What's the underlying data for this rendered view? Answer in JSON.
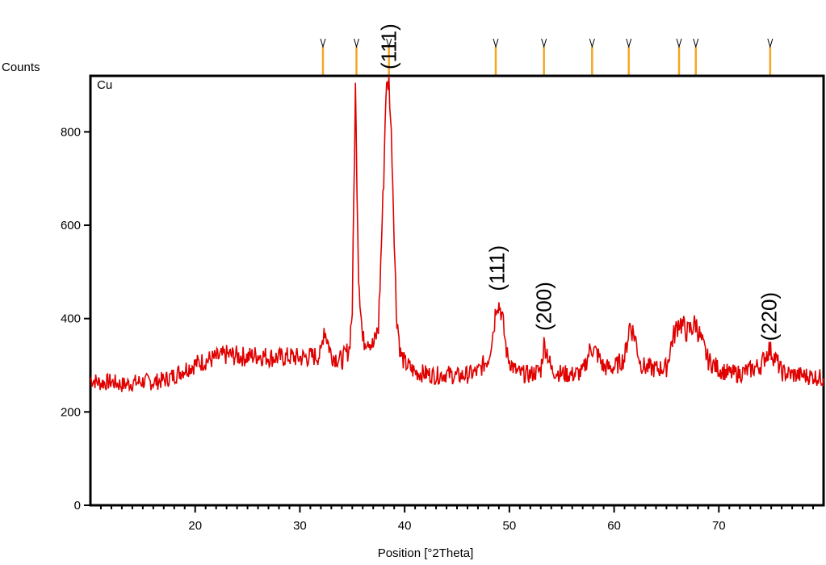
{
  "chart_data": {
    "type": "line",
    "title": "",
    "xlabel": "Position [°2Theta]",
    "ylabel": "Counts",
    "xlim": [
      10,
      80
    ],
    "ylim": [
      0,
      920
    ],
    "x_ticks": [
      20,
      30,
      40,
      50,
      60,
      70
    ],
    "y_ticks": [
      0,
      200,
      400,
      600,
      800
    ],
    "grid": false,
    "legend": "none",
    "series_color": "#e00000",
    "marker_color": "#f5a623",
    "series": [
      {
        "name": "Cu",
        "x": [
          10,
          11,
          12,
          13,
          14,
          15,
          16,
          17,
          18,
          19,
          20,
          21,
          22,
          23,
          24,
          25,
          26,
          27,
          28,
          29,
          30,
          31,
          32,
          32.3,
          33,
          34,
          34.7,
          35.0,
          35.3,
          35.6,
          36.0,
          36.5,
          37.0,
          37.5,
          38.0,
          38.2,
          38.5,
          38.8,
          39.2,
          39.6,
          40.0,
          41,
          42,
          43,
          44,
          45,
          46,
          47,
          48,
          48.5,
          48.8,
          49.2,
          49.8,
          50.5,
          51,
          52,
          53,
          53.3,
          53.6,
          54,
          55,
          56,
          57,
          57.8,
          58.5,
          59,
          60,
          61,
          61.5,
          62,
          62.5,
          63,
          64,
          65,
          65.5,
          66.2,
          67,
          67.8,
          68.5,
          69,
          70,
          71,
          72,
          73,
          74,
          74.8,
          75.5,
          76,
          77,
          78,
          79,
          80
        ],
        "y": [
          270,
          262,
          265,
          258,
          262,
          265,
          264,
          268,
          278,
          292,
          302,
          310,
          315,
          322,
          320,
          318,
          322,
          318,
          316,
          318,
          316,
          318,
          322,
          382,
          322,
          310,
          335,
          420,
          895,
          500,
          350,
          360,
          340,
          380,
          700,
          880,
          915,
          750,
          420,
          325,
          305,
          285,
          282,
          278,
          282,
          276,
          280,
          286,
          315,
          380,
          440,
          420,
          320,
          290,
          282,
          280,
          290,
          345,
          330,
          290,
          282,
          280,
          285,
          340,
          320,
          295,
          295,
          315,
          388,
          360,
          305,
          295,
          292,
          295,
          350,
          395,
          370,
          390,
          340,
          310,
          292,
          282,
          282,
          290,
          300,
          335,
          310,
          285,
          280,
          278,
          276,
          272
        ]
      }
    ],
    "series_label": "Cu",
    "reference_markers": [
      32.2,
      35.4,
      38.5,
      48.7,
      53.3,
      57.9,
      61.4,
      66.2,
      67.8,
      74.9
    ],
    "peak_labels": [
      {
        "text": "(111)",
        "x": 38.5,
        "y": 920
      },
      {
        "text": "(111)",
        "x": 48.8,
        "y": 445
      },
      {
        "text": "(200)",
        "x": 53.3,
        "y": 360
      },
      {
        "text": "(220)",
        "x": 74.8,
        "y": 338
      }
    ]
  }
}
